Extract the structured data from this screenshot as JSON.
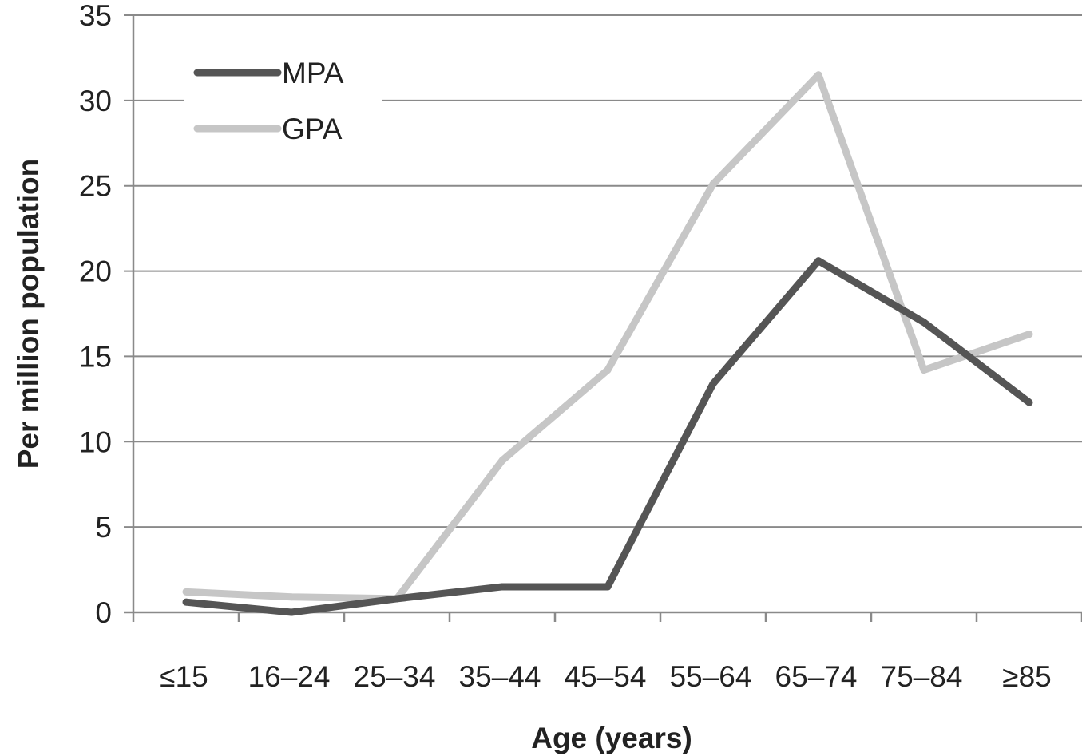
{
  "chart_data": {
    "type": "line",
    "title": "",
    "xlabel": "Age (years)",
    "ylabel": "Per million population",
    "categories": [
      "≤15",
      "16–24",
      "25–34",
      "35–44",
      "45–54",
      "55–64",
      "65–74",
      "75–84",
      "≥85"
    ],
    "y_ticks": [
      "0",
      "5",
      "10",
      "15",
      "20",
      "25",
      "30",
      "35"
    ],
    "ylim": [
      0,
      35
    ],
    "grid": true,
    "legend_position": "top-left",
    "series": [
      {
        "name": "MPA",
        "color": "#555555",
        "values": [
          0.6,
          0.0,
          0.8,
          1.5,
          1.5,
          13.4,
          20.6,
          17.0,
          12.3
        ]
      },
      {
        "name": "GPA",
        "color": "#c6c6c6",
        "values": [
          1.2,
          0.9,
          0.8,
          8.9,
          14.2,
          25.1,
          31.5,
          14.2,
          16.3
        ]
      }
    ]
  }
}
